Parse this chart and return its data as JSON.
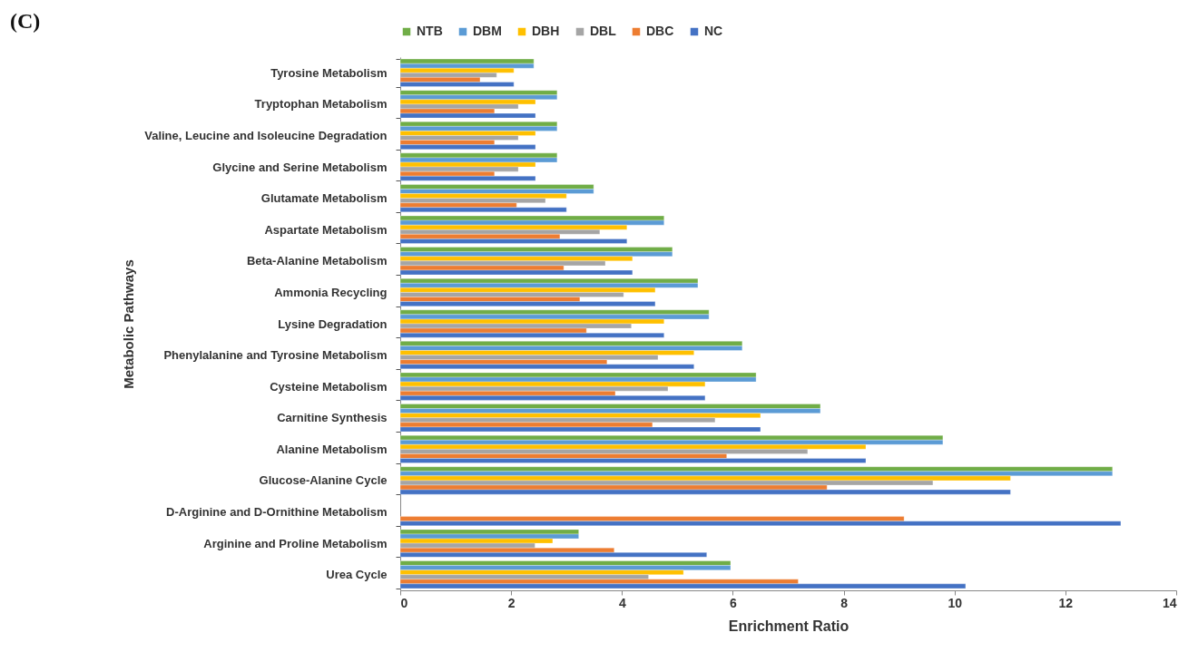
{
  "chart_data": {
    "type": "bar",
    "orientation": "horizontal",
    "title": "(C)",
    "xlabel": "Enrichment Ratio",
    "ylabel": "Metabolic Pathways",
    "categories": [
      "Tyrosine Metabolism",
      "Tryptophan Metabolism",
      "Valine, Leucine and Isoleucine Degradation",
      "Glycine and Serine Metabolism",
      "Glutamate Metabolism",
      "Aspartate Metabolism",
      "Beta-Alanine Metabolism",
      "Ammonia Recycling",
      "Lysine Degradation",
      "Phenylalanine and Tyrosine Metabolism",
      "Cysteine Metabolism",
      "Carnitine Synthesis",
      "Alanine Metabolism",
      "Glucose-Alanine Cycle",
      "D-Arginine and D-Ornithine Metabolism",
      "Arginine and Proline Metabolism",
      "Urea Cycle"
    ],
    "series": [
      {
        "name": "NTB",
        "color": "#70ad47",
        "values": [
          2.41,
          2.83,
          2.83,
          2.83,
          3.49,
          4.76,
          4.91,
          5.37,
          5.57,
          6.17,
          6.42,
          7.58,
          9.79,
          12.85,
          null,
          3.22,
          5.96
        ]
      },
      {
        "name": "DBM",
        "color": "#5b9bd5",
        "values": [
          2.41,
          2.83,
          2.83,
          2.83,
          3.49,
          4.76,
          4.91,
          5.37,
          5.57,
          6.17,
          6.42,
          7.58,
          9.79,
          12.85,
          null,
          3.22,
          5.96
        ]
      },
      {
        "name": "DBH",
        "color": "#ffc000",
        "values": [
          2.05,
          2.44,
          2.44,
          2.44,
          3.0,
          4.09,
          4.19,
          4.6,
          4.76,
          5.3,
          5.5,
          6.5,
          8.4,
          11.01,
          null,
          2.75,
          5.11
        ]
      },
      {
        "name": "DBL",
        "color": "#a5a5a5",
        "values": [
          1.74,
          2.13,
          2.13,
          2.13,
          2.62,
          3.6,
          3.7,
          4.03,
          4.17,
          4.65,
          4.83,
          5.68,
          7.35,
          9.61,
          null,
          2.43,
          4.48
        ]
      },
      {
        "name": "DBC",
        "color": "#ed7d31",
        "values": [
          1.44,
          1.7,
          1.7,
          1.7,
          2.1,
          2.88,
          2.95,
          3.24,
          3.36,
          3.73,
          3.88,
          4.55,
          5.89,
          7.7,
          9.09,
          3.86,
          7.18
        ]
      },
      {
        "name": "NC",
        "color": "#4472c4",
        "values": [
          2.05,
          2.44,
          2.44,
          2.44,
          3.0,
          4.09,
          4.19,
          4.6,
          4.76,
          5.3,
          5.5,
          6.5,
          8.4,
          11.01,
          13.0,
          5.53,
          10.2
        ]
      }
    ],
    "xlim": [
      0,
      14
    ],
    "xticks": [
      0,
      2,
      4,
      6,
      8,
      10,
      12,
      14
    ],
    "legend": "top",
    "grid": false
  }
}
